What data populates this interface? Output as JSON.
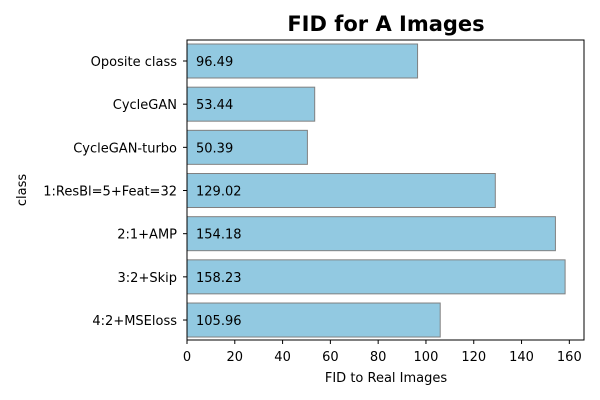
{
  "chart_data": {
    "type": "bar",
    "orientation": "horizontal",
    "title": "FID for A Images",
    "xlabel": "FID to Real Images",
    "ylabel": "class",
    "categories": [
      "Oposite class",
      "CycleGAN",
      "CycleGAN-turbo",
      "1:ResBl=5+Feat=32",
      "2:1+AMP",
      "3:2+Skip",
      "4:2+MSEloss"
    ],
    "values": [
      96.49,
      53.44,
      50.39,
      129.02,
      154.18,
      158.23,
      105.96
    ],
    "value_labels": [
      "96.49",
      "53.44",
      "50.39",
      "129.02",
      "154.18",
      "158.23",
      "105.96"
    ],
    "xlim": [
      0,
      166.14
    ],
    "xticks": [
      0,
      20,
      40,
      60,
      80,
      100,
      120,
      140,
      160
    ],
    "xtick_labels": [
      "0",
      "20",
      "40",
      "60",
      "80",
      "100",
      "120",
      "140",
      "160"
    ],
    "grid": false,
    "legend": "none",
    "colors": {
      "bar_fill": "#92c9e1",
      "bar_edge": "#808080",
      "axis": "#000000",
      "text": "#000000"
    }
  }
}
